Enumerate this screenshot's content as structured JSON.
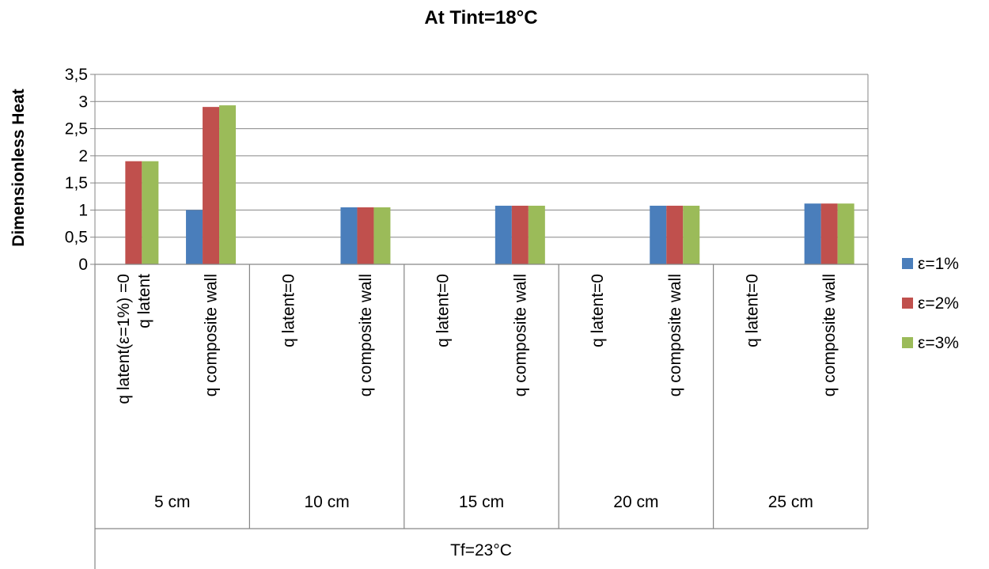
{
  "chart_data": {
    "type": "bar",
    "title": "At Tint=18°C",
    "ylabel": "Dimensionless Heat",
    "xlabel": "Tf=23°C",
    "ylim": [
      0,
      3.5
    ],
    "yticks": [
      "0",
      "0,5",
      "1",
      "1,5",
      "2",
      "2,5",
      "3",
      "3,5"
    ],
    "grid": true,
    "legend_position": "right",
    "groups": [
      "5 cm",
      "10 cm",
      "15 cm",
      "20 cm",
      "25 cm"
    ],
    "categories": [
      {
        "group": "5 cm",
        "lines": [
          "q latent(ε=1%) =0",
          "q latent"
        ]
      },
      {
        "group": "5 cm",
        "lines": [
          "q composite  wall"
        ]
      },
      {
        "group": "10 cm",
        "lines": [
          "q latent=0"
        ]
      },
      {
        "group": "10 cm",
        "lines": [
          "q composite  wall"
        ]
      },
      {
        "group": "15 cm",
        "lines": [
          "q latent=0"
        ]
      },
      {
        "group": "15 cm",
        "lines": [
          "q composite  wall"
        ]
      },
      {
        "group": "20 cm",
        "lines": [
          "q latent=0"
        ]
      },
      {
        "group": "20 cm",
        "lines": [
          "q composite  wall"
        ]
      },
      {
        "group": "25 cm",
        "lines": [
          "q latent=0"
        ]
      },
      {
        "group": "25 cm",
        "lines": [
          "q composite  wall"
        ]
      }
    ],
    "series": [
      {
        "name": "ε=1%",
        "color": "#4a7ebb",
        "values": [
          0,
          1.0,
          0,
          1.05,
          0,
          1.08,
          0,
          1.08,
          0,
          1.12
        ]
      },
      {
        "name": "ε=2%",
        "color": "#c0504d",
        "values": [
          1.9,
          2.9,
          0,
          1.05,
          0,
          1.08,
          0,
          1.08,
          0,
          1.12
        ]
      },
      {
        "name": "ε=3%",
        "color": "#9bbb59",
        "values": [
          1.9,
          2.93,
          0,
          1.05,
          0,
          1.08,
          0,
          1.08,
          0,
          1.12
        ]
      }
    ]
  }
}
